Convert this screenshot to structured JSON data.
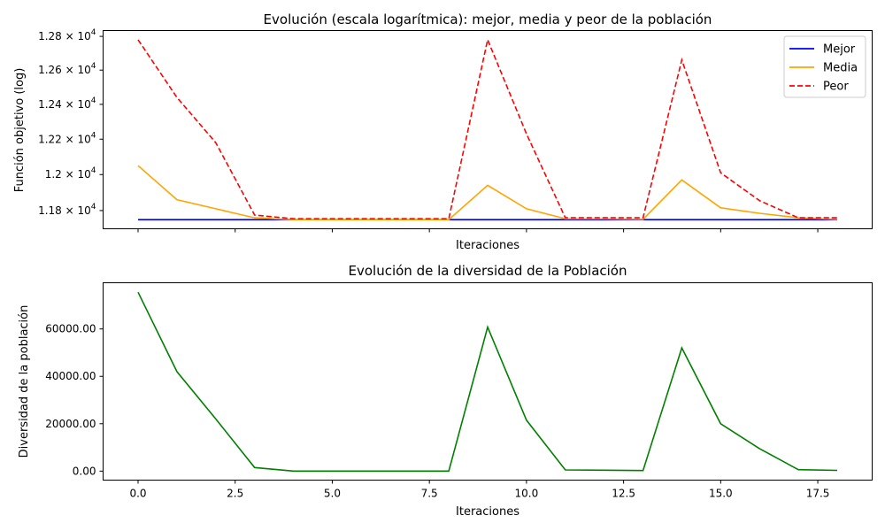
{
  "chart_data": [
    {
      "type": "line",
      "title": "Evolución (escala logarítmica): mejor, media y peor de la población",
      "xlabel": "Iteraciones",
      "ylabel": "Función objetivo (log)",
      "yscale": "log",
      "xlim": [
        -0.9,
        18.9
      ],
      "ylim": [
        11700,
        12835
      ],
      "x_ticks": [
        0,
        2.5,
        5,
        7.5,
        10,
        12.5,
        15,
        17.5
      ],
      "x_tick_labels_visible": false,
      "y_ticks": [
        {
          "value": 11800,
          "mantissa": "1.18",
          "exp": "4"
        },
        {
          "value": 12000,
          "mantissa": "1.2",
          "exp": "4"
        },
        {
          "value": 12200,
          "mantissa": "1.22",
          "exp": "4"
        },
        {
          "value": 12400,
          "mantissa": "1.24",
          "exp": "4"
        },
        {
          "value": 12600,
          "mantissa": "1.26",
          "exp": "4"
        },
        {
          "value": 12800,
          "mantissa": "1.28",
          "exp": "4"
        }
      ],
      "tick_times": "×",
      "tick_base": "10",
      "legend": "top-right",
      "x": [
        0,
        1,
        2,
        3,
        4,
        5,
        6,
        7,
        8,
        9,
        10,
        11,
        12,
        13,
        14,
        15,
        16,
        17,
        18
      ],
      "series": [
        {
          "name": "Mejor",
          "color": "#0000ff",
          "dash": "solid",
          "values": [
            11750,
            11750,
            11750,
            11750,
            11750,
            11750,
            11750,
            11750,
            11750,
            11750,
            11750,
            11750,
            11750,
            11750,
            11750,
            11750,
            11750,
            11750,
            11750
          ]
        },
        {
          "name": "Media",
          "color": "#ffa500",
          "dash": "solid",
          "values": [
            12050,
            11860,
            11810,
            11760,
            11750,
            11750,
            11750,
            11750,
            11750,
            11940,
            11810,
            11755,
            11755,
            11752,
            11970,
            11815,
            11785,
            11760,
            11752
          ]
        },
        {
          "name": "Peor",
          "color": "#ff0000",
          "dash": "dashed",
          "values": [
            12780,
            12440,
            12180,
            11775,
            11755,
            11755,
            11755,
            11755,
            11755,
            12780,
            12230,
            11760,
            11760,
            11760,
            12660,
            12010,
            11855,
            11760,
            11760
          ]
        }
      ]
    },
    {
      "type": "line",
      "title": "Evolución de la diversidad de la Población",
      "xlabel": "Iteraciones",
      "ylabel": "Diversidad de la población",
      "xlim": [
        -0.9,
        18.9
      ],
      "ylim": [
        -3800,
        79500
      ],
      "x_ticks": [
        0,
        2.5,
        5,
        7.5,
        10,
        12.5,
        15,
        17.5
      ],
      "x_tick_labels": [
        "0.0",
        "2.5",
        "5.0",
        "7.5",
        "10.0",
        "12.5",
        "15.0",
        "17.5"
      ],
      "y_ticks": [
        0,
        20000,
        40000,
        60000
      ],
      "y_tick_labels": [
        "0.00",
        "20000.00",
        "40000.00",
        "60000.00"
      ],
      "x": [
        0,
        1,
        2,
        3,
        4,
        5,
        6,
        7,
        8,
        9,
        10,
        11,
        12,
        13,
        14,
        15,
        16,
        17,
        18
      ],
      "series": [
        {
          "color": "#008000",
          "dash": "solid",
          "values": [
            75500,
            42000,
            22000,
            1500,
            0,
            0,
            0,
            0,
            0,
            60800,
            21500,
            500,
            400,
            250,
            52000,
            20000,
            9500,
            600,
            300
          ]
        }
      ]
    }
  ]
}
